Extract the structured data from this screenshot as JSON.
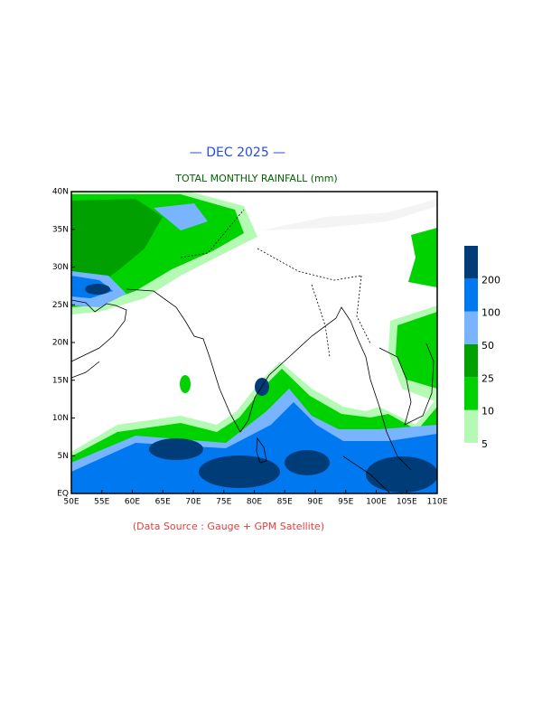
{
  "map": {
    "title": "— DEC 2025 —",
    "subtitle": "TOTAL MONTHLY RAINFALL (mm)",
    "source": "(Data Source : Gauge + GPM Satellite)",
    "xlim": [
      50,
      110
    ],
    "ylim": [
      0,
      40
    ],
    "xticks": [
      {
        "value": 50,
        "label": "50E"
      },
      {
        "value": 55,
        "label": "55E"
      },
      {
        "value": 60,
        "label": "60E"
      },
      {
        "value": 65,
        "label": "65E"
      },
      {
        "value": 70,
        "label": "70E"
      },
      {
        "value": 75,
        "label": "75E"
      },
      {
        "value": 80,
        "label": "80E"
      },
      {
        "value": 85,
        "label": "85E"
      },
      {
        "value": 90,
        "label": "90E"
      },
      {
        "value": 95,
        "label": "95E"
      },
      {
        "value": 100,
        "label": "100E"
      },
      {
        "value": 105,
        "label": "105E"
      },
      {
        "value": 110,
        "label": "110E"
      }
    ],
    "yticks": [
      {
        "value": 0,
        "label": "EQ"
      },
      {
        "value": 5,
        "label": "5N"
      },
      {
        "value": 10,
        "label": "10N"
      },
      {
        "value": 15,
        "label": "15N"
      },
      {
        "value": 20,
        "label": "20N"
      },
      {
        "value": 25,
        "label": "25N"
      },
      {
        "value": 30,
        "label": "30N"
      },
      {
        "value": 35,
        "label": "35N"
      },
      {
        "value": 40,
        "label": "40N"
      }
    ],
    "legend": {
      "levels": [
        5,
        10,
        25,
        50,
        100,
        200
      ],
      "colors": [
        "#b4fab4",
        "#00d200",
        "#00a000",
        "#78b4ff",
        "#0078f0",
        "#003c78"
      ]
    }
  }
}
